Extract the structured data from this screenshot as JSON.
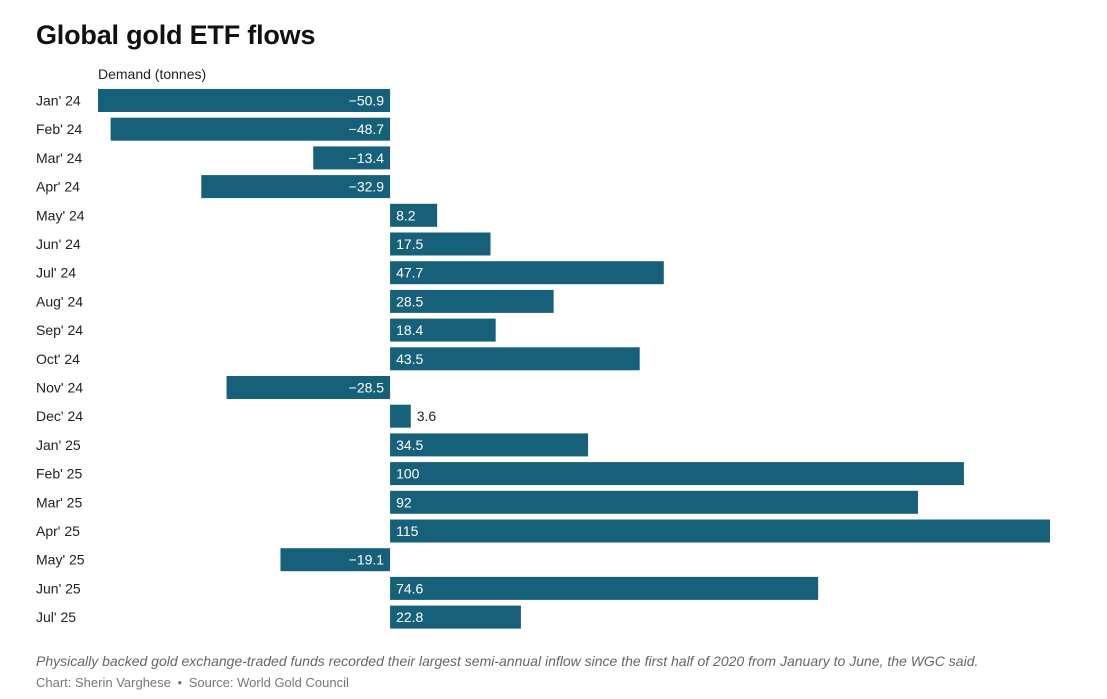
{
  "chart_data": {
    "type": "bar",
    "orientation": "horizontal",
    "title": "Global gold ETF flows",
    "ylabel": "Demand (tonnes)",
    "categories": [
      "Jan' 24",
      "Feb' 24",
      "Mar' 24",
      "Apr' 24",
      "May' 24",
      "Jun' 24",
      "Jul' 24",
      "Aug' 24",
      "Sep' 24",
      "Oct' 24",
      "Nov' 24",
      "Dec' 24",
      "Jan' 25",
      "Feb' 25",
      "Mar' 25",
      "Apr' 25",
      "May' 25",
      "Jun' 25",
      "Jul' 25"
    ],
    "values": [
      -50.9,
      -48.7,
      -13.4,
      -32.9,
      8.2,
      17.5,
      47.7,
      28.5,
      18.4,
      43.5,
      -28.5,
      3.6,
      34.5,
      100,
      92,
      115,
      -19.1,
      74.6,
      22.8
    ],
    "value_labels": [
      "−50.9",
      "−48.7",
      "−13.4",
      "−32.9",
      "8.2",
      "17.5",
      "47.7",
      "28.5",
      "18.4",
      "43.5",
      "−28.5",
      "3.6",
      "34.5",
      "100",
      "92",
      "115",
      "−19.1",
      "74.6",
      "22.8"
    ],
    "xlim": [
      -50.9,
      115
    ],
    "grid": false,
    "bar_color": "#17607a"
  },
  "caption": "Physically backed gold exchange-traded funds recorded their largest semi-annual inflow since the first half of 2020 from January to June, the WGC said.",
  "credit": {
    "chart": "Chart: Sherin Varghese",
    "separator": "•",
    "source": "Source: World Gold Council"
  }
}
